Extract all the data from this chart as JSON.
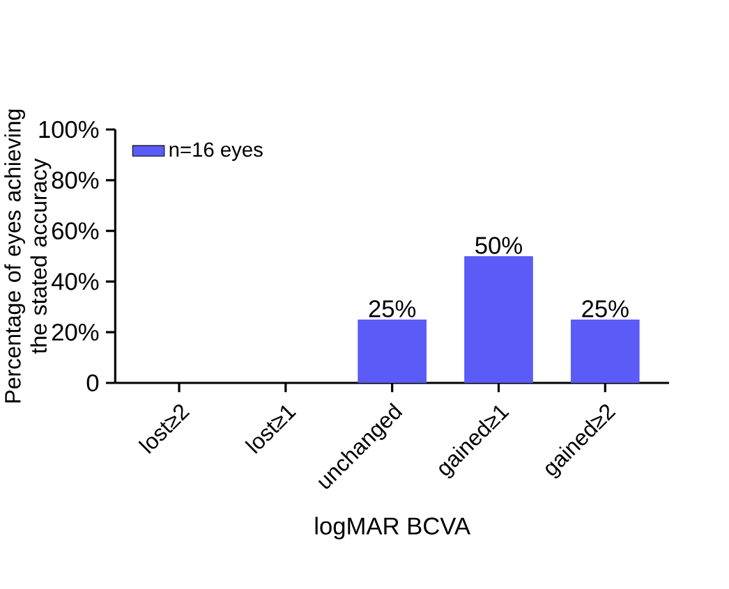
{
  "chart_data": {
    "type": "bar",
    "xlabel": "logMAR BCVA",
    "ylabel": "Percentage of eyes achieving the stated accuracy",
    "categories": [
      "lost≥2",
      "lost≥1",
      "unchanged",
      "gained≥1",
      "gained≥2"
    ],
    "series": [
      {
        "name": "n=16 eyes",
        "color": "#5b5bf7",
        "values": [
          0,
          0,
          25,
          50,
          25
        ],
        "value_labels": [
          null,
          null,
          "25%",
          "50%",
          "25%"
        ]
      }
    ],
    "ylim": [
      0,
      100
    ],
    "yticks": [
      0,
      {
        "value": 20,
        "label": "20%"
      },
      {
        "value": 40,
        "label": "40%"
      },
      {
        "value": 60,
        "label": "60%"
      },
      {
        "value": 80,
        "label": "80%"
      },
      {
        "value": 100,
        "label": "100%"
      }
    ],
    "grid": false,
    "legend": "top left"
  }
}
